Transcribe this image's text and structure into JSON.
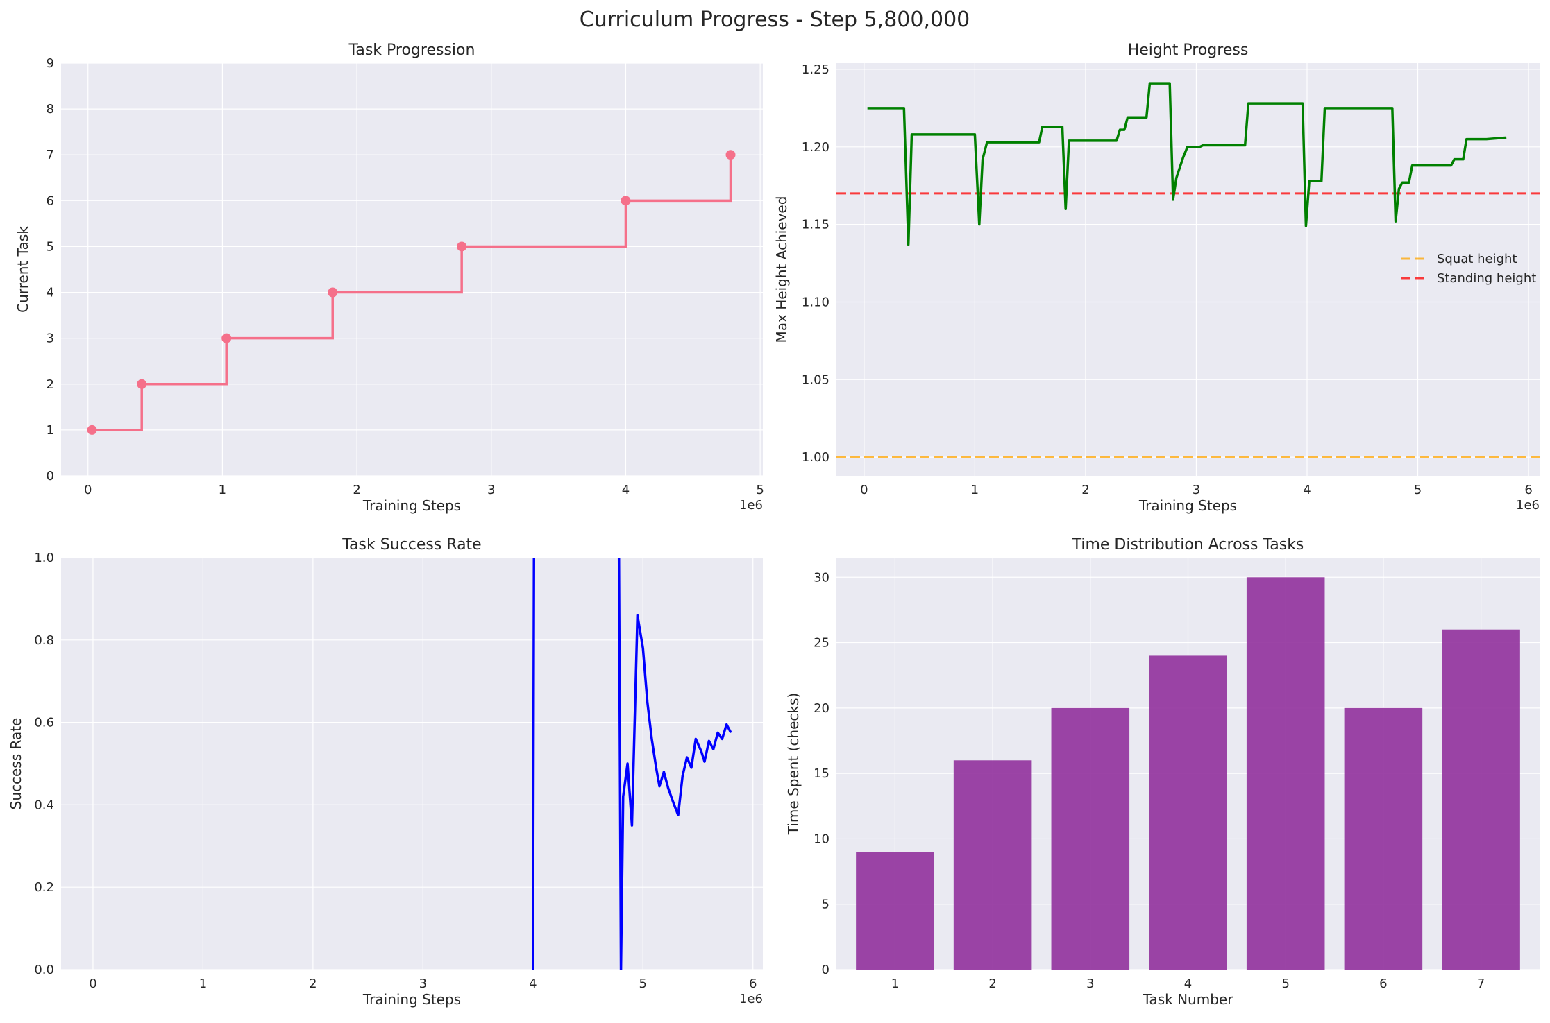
{
  "suptitle": "Curriculum Progress - Step 5,800,000",
  "colors": {
    "pink": "#f5708a",
    "green": "#008000",
    "blue": "#0000ff",
    "purple": "#8e2b9a",
    "orange": "#ffa500",
    "red": "#ff0000"
  },
  "chart_data": [
    {
      "type": "line",
      "title": "Task Progression",
      "xlabel": "Training Steps",
      "ylabel": "Current Task",
      "x_offset_label": "1e6",
      "xlim": [
        -0.2,
        5.02
      ],
      "ylim": [
        0,
        9
      ],
      "xticks": [
        0,
        1,
        2,
        3,
        4,
        5
      ],
      "yticks": [
        0,
        1,
        2,
        3,
        4,
        5,
        6,
        7,
        8,
        9
      ],
      "step_line": [
        [
          0.03,
          1
        ],
        [
          0.4,
          1
        ],
        [
          0.4,
          2
        ],
        [
          1.03,
          2
        ],
        [
          1.03,
          3
        ],
        [
          1.82,
          3
        ],
        [
          1.82,
          4
        ],
        [
          2.78,
          4
        ],
        [
          2.78,
          5
        ],
        [
          4.0,
          5
        ],
        [
          4.0,
          6
        ],
        [
          4.78,
          6
        ],
        [
          4.78,
          7
        ]
      ],
      "markers": [
        [
          0.03,
          1
        ],
        [
          0.4,
          2
        ],
        [
          1.03,
          3
        ],
        [
          1.82,
          4
        ],
        [
          2.78,
          5
        ],
        [
          4.0,
          6
        ],
        [
          4.78,
          7
        ]
      ]
    },
    {
      "type": "line",
      "title": "Height Progress",
      "xlabel": "Training Steps",
      "ylabel": "Max Height Achieved",
      "x_offset_label": "1e6",
      "xlim": [
        -0.25,
        6.1
      ],
      "ylim": [
        0.988,
        1.254
      ],
      "xticks": [
        0,
        1,
        2,
        3,
        4,
        5,
        6
      ],
      "yticks": [
        1.0,
        1.05,
        1.1,
        1.15,
        1.2,
        1.25
      ],
      "series": [
        {
          "points": [
            [
              0.03,
              1.225
            ],
            [
              0.36,
              1.225
            ],
            [
              0.4,
              1.137
            ],
            [
              0.43,
              1.208
            ],
            [
              1.0,
              1.208
            ],
            [
              1.04,
              1.15
            ],
            [
              1.07,
              1.192
            ],
            [
              1.11,
              1.203
            ],
            [
              1.58,
              1.203
            ],
            [
              1.61,
              1.213
            ],
            [
              1.79,
              1.213
            ],
            [
              1.82,
              1.16
            ],
            [
              1.85,
              1.204
            ],
            [
              2.28,
              1.204
            ],
            [
              2.31,
              1.211
            ],
            [
              2.35,
              1.211
            ],
            [
              2.38,
              1.219
            ],
            [
              2.55,
              1.219
            ],
            [
              2.58,
              1.241
            ],
            [
              2.76,
              1.241
            ],
            [
              2.79,
              1.166
            ],
            [
              2.82,
              1.18
            ],
            [
              2.88,
              1.193
            ],
            [
              2.92,
              1.2
            ],
            [
              3.03,
              1.2
            ],
            [
              3.06,
              1.201
            ],
            [
              3.44,
              1.201
            ],
            [
              3.47,
              1.228
            ],
            [
              3.96,
              1.228
            ],
            [
              3.99,
              1.149
            ],
            [
              4.02,
              1.178
            ],
            [
              4.13,
              1.178
            ],
            [
              4.16,
              1.225
            ],
            [
              4.77,
              1.225
            ],
            [
              4.8,
              1.152
            ],
            [
              4.83,
              1.173
            ],
            [
              4.86,
              1.177
            ],
            [
              4.92,
              1.177
            ],
            [
              4.95,
              1.188
            ],
            [
              5.3,
              1.188
            ],
            [
              5.33,
              1.192
            ],
            [
              5.41,
              1.192
            ],
            [
              5.44,
              1.205
            ],
            [
              5.62,
              1.205
            ],
            [
              5.8,
              1.206
            ]
          ]
        }
      ],
      "hlines": [
        {
          "name": "Squat height",
          "y": 1.0
        },
        {
          "name": "Standing height",
          "y": 1.17
        }
      ],
      "legend": "center-right"
    },
    {
      "type": "line",
      "title": "Task Success Rate",
      "xlabel": "Training Steps",
      "ylabel": "Success Rate",
      "x_offset_label": "1e6",
      "xlim": [
        -0.29,
        6.09
      ],
      "ylim": [
        0,
        1.0
      ],
      "xticks": [
        0,
        1,
        2,
        3,
        4,
        5,
        6
      ],
      "yticks": [
        0.0,
        0.2,
        0.4,
        0.6,
        0.8,
        1.0
      ],
      "series": [
        {
          "points": [
            [
              4.0,
              0.0
            ],
            [
              4.01,
              1.1
            ],
            [
              4.78,
              1.1
            ],
            [
              4.8,
              0.0
            ],
            [
              4.82,
              0.42
            ],
            [
              4.86,
              0.5
            ],
            [
              4.9,
              0.35
            ],
            [
              4.95,
              0.86
            ],
            [
              5.0,
              0.78
            ],
            [
              5.04,
              0.65
            ],
            [
              5.08,
              0.56
            ],
            [
              5.12,
              0.49
            ],
            [
              5.15,
              0.445
            ],
            [
              5.19,
              0.48
            ],
            [
              5.23,
              0.44
            ],
            [
              5.27,
              0.41
            ],
            [
              5.32,
              0.375
            ],
            [
              5.36,
              0.47
            ],
            [
              5.4,
              0.515
            ],
            [
              5.44,
              0.49
            ],
            [
              5.48,
              0.56
            ],
            [
              5.53,
              0.53
            ],
            [
              5.56,
              0.505
            ],
            [
              5.6,
              0.555
            ],
            [
              5.64,
              0.535
            ],
            [
              5.68,
              0.575
            ],
            [
              5.72,
              0.56
            ],
            [
              5.76,
              0.595
            ],
            [
              5.8,
              0.575
            ]
          ]
        }
      ]
    },
    {
      "type": "bar",
      "title": "Time Distribution Across Tasks",
      "xlabel": "Task Number",
      "ylabel": "Time Spent (checks)",
      "categories": [
        "1",
        "2",
        "3",
        "4",
        "5",
        "6",
        "7"
      ],
      "values": [
        9,
        16,
        20,
        24,
        30,
        20,
        26
      ],
      "ylim": [
        0,
        31.5
      ],
      "yticks": [
        0,
        5,
        10,
        15,
        20,
        25,
        30
      ]
    }
  ]
}
